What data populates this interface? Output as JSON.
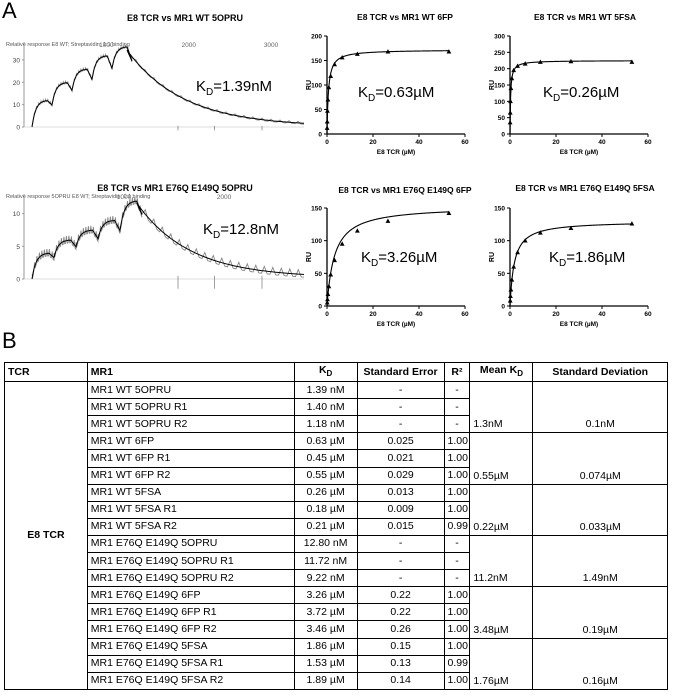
{
  "panel_a_label": "A",
  "panel_b_label": "B",
  "sensor_charts": [
    {
      "title": "E8 TCR vs MR1 WT 5OPRU",
      "overlay_text": "Relative response E8 WT; Streptavidin; 1:1 binding",
      "kd_symbol": "K",
      "kd_sub": "D",
      "kd_value": "=1.39nM",
      "y_ticks": [
        "0",
        "10",
        "20",
        "30"
      ],
      "x_ticks": [
        "1000",
        "2000",
        "3000"
      ]
    },
    {
      "title": "E8 TCR vs MR1 E76Q E149Q 5OPRU",
      "overlay_text": "Relative response 5OPRU E8 WT; Streptavidin; 1:1 binding",
      "kd_symbol": "K",
      "kd_sub": "D",
      "kd_value": "=12.8nM",
      "y_ticks": [
        "0",
        "5",
        "10"
      ],
      "x_ticks": [
        "1000",
        "2000"
      ]
    }
  ],
  "chart_data": [
    {
      "type": "scatter",
      "title": "E8 TCR vs MR1 WT 6FP",
      "xlabel": "E8 TCR (µM)",
      "ylabel": "RU",
      "xlim": [
        0,
        60
      ],
      "ylim": [
        0,
        200
      ],
      "x_ticks": [
        0,
        20,
        40,
        60
      ],
      "y_ticks": [
        0,
        50,
        100,
        150,
        200
      ],
      "x": [
        0.05,
        0.1,
        0.2,
        0.4,
        0.8,
        1.6,
        3.3,
        6.6,
        13.2,
        26.5,
        53
      ],
      "y": [
        12,
        25,
        47,
        70,
        95,
        118,
        142,
        156,
        163,
        168,
        168
      ],
      "kd_symbol": "K",
      "kd_sub": "D",
      "kd_value": "=0.63µM",
      "bmax": 172,
      "kd": 0.63
    },
    {
      "type": "scatter",
      "title": "E8 TCR vs MR1 WT 5FSA",
      "xlabel": "E8 TCR (µM)",
      "ylabel": "RU",
      "xlim": [
        0,
        60
      ],
      "ylim": [
        0,
        300
      ],
      "x_ticks": [
        0,
        20,
        40,
        60
      ],
      "y_ticks": [
        0,
        50,
        100,
        150,
        200,
        250,
        300
      ],
      "x": [
        0.05,
        0.1,
        0.2,
        0.4,
        0.8,
        1.6,
        3.3,
        6.6,
        13.2,
        26.5,
        53
      ],
      "y": [
        35,
        65,
        100,
        140,
        170,
        195,
        208,
        215,
        220,
        222,
        220
      ],
      "kd_symbol": "K",
      "kd_sub": "D",
      "kd_value": "=0.26µM",
      "bmax": 225,
      "kd": 0.26
    },
    {
      "type": "scatter",
      "title": "E8 TCR vs MR1 E76Q E149Q 6FP",
      "xlabel": "E8 TCR (µM)",
      "ylabel": "RU",
      "xlim": [
        0,
        60
      ],
      "ylim": [
        0,
        150
      ],
      "x_ticks": [
        0,
        20,
        40,
        60
      ],
      "y_ticks": [
        0,
        50,
        100,
        150
      ],
      "x": [
        0.1,
        0.2,
        0.4,
        0.8,
        1.6,
        3.3,
        6.6,
        13.2,
        26.5,
        53
      ],
      "y": [
        5,
        10,
        18,
        30,
        48,
        70,
        95,
        115,
        130,
        142
      ],
      "kd_symbol": "K",
      "kd_sub": "D",
      "kd_value": "=3.26µM",
      "bmax": 153,
      "kd": 3.26
    },
    {
      "type": "scatter",
      "title": "E8 TCR vs MR1 E76Q E149Q 5FSA",
      "xlabel": "E8 TCR (µM)",
      "ylabel": "RU",
      "xlim": [
        0,
        60
      ],
      "ylim": [
        0,
        150
      ],
      "x_ticks": [
        0,
        20,
        40,
        60
      ],
      "y_ticks": [
        0,
        50,
        100,
        150
      ],
      "x": [
        0.1,
        0.2,
        0.4,
        0.8,
        1.6,
        3.3,
        6.6,
        13.2,
        26.5,
        53
      ],
      "y": [
        8,
        15,
        25,
        40,
        60,
        82,
        100,
        112,
        119,
        126
      ],
      "kd_symbol": "K",
      "kd_sub": "D",
      "kd_value": "=1.86µM",
      "bmax": 130,
      "kd": 1.86
    }
  ],
  "table": {
    "headers": {
      "tcr": "TCR",
      "mr1": "MR1",
      "kd": "K",
      "kd_sub": "D",
      "se": "Standard Error",
      "r2": "R²",
      "mean": "Mean K",
      "mean_sub": "D",
      "sd": "Standard Deviation"
    },
    "tcr_label": "E8 TCR",
    "groups": [
      {
        "rows": [
          {
            "mr1": "MR1 WT 5OPRU",
            "kd": "1.39 nM",
            "se": "-",
            "r2": "-"
          },
          {
            "mr1": "MR1 WT 5OPRU R1",
            "kd": "1.40 nM",
            "se": "-",
            "r2": "-"
          },
          {
            "mr1": "MR1 WT 5OPRU R2",
            "kd": "1.18 nM",
            "se": "-",
            "r2": "-"
          }
        ],
        "mean": "1.3nM",
        "sd": "0.1nM"
      },
      {
        "rows": [
          {
            "mr1": "MR1 WT 6FP",
            "kd": "0.63 µM",
            "se": "0.025",
            "r2": "1.00"
          },
          {
            "mr1": "MR1 WT 6FP R1",
            "kd": "0.45 µM",
            "se": "0.021",
            "r2": "1.00"
          },
          {
            "mr1": "MR1 WT 6FP R2",
            "kd": "0.55 µM",
            "se": "0.029",
            "r2": "1.00"
          }
        ],
        "mean": "0.55µM",
        "sd": "0.074µM"
      },
      {
        "rows": [
          {
            "mr1": "MR1 WT 5FSA",
            "kd": "0.26 µM",
            "se": "0.013",
            "r2": "1.00"
          },
          {
            "mr1": "MR1 WT 5FSA R1",
            "kd": "0.18 µM",
            "se": "0.009",
            "r2": "1.00"
          },
          {
            "mr1": "MR1 WT 5FSA R2",
            "kd": "0.21 µM",
            "se": "0.015",
            "r2": "0.99"
          }
        ],
        "mean": "0.22µM",
        "sd": "0.033µM"
      },
      {
        "rows": [
          {
            "mr1": "MR1 E76Q E149Q 5OPRU",
            "kd": "12.80 nM",
            "se": "-",
            "r2": "-"
          },
          {
            "mr1": "MR1 E76Q E149Q 5OPRU R1",
            "kd": "11.72 nM",
            "se": "-",
            "r2": "-"
          },
          {
            "mr1": "MR1 E76Q E149Q 5OPRU R2",
            "kd": "9.22 nM",
            "se": "-",
            "r2": "-"
          }
        ],
        "mean": "11.2nM",
        "sd": "1.49nM"
      },
      {
        "rows": [
          {
            "mr1": "MR1 E76Q E149Q 6FP",
            "kd": "3.26 µM",
            "se": "0.22",
            "r2": "1.00"
          },
          {
            "mr1": "MR1 E76Q E149Q 6FP R1",
            "kd": "3.72 µM",
            "se": "0.22",
            "r2": "1.00"
          },
          {
            "mr1": "MR1 E76Q E149Q 6FP R2",
            "kd": "3.46 µM",
            "se": "0.26",
            "r2": "1.00"
          }
        ],
        "mean": "3.48µM",
        "sd": "0.19µM"
      },
      {
        "rows": [
          {
            "mr1": "MR1 E76Q E149Q 5FSA",
            "kd": "1.86 µM",
            "se": "0.15",
            "r2": "1.00"
          },
          {
            "mr1": "MR1 E76Q E149Q 5FSA R1",
            "kd": "1.53 µM",
            "se": "0.13",
            "r2": "0.99"
          },
          {
            "mr1": "MR1 E76Q E149Q 5FSA R2",
            "kd": "1.89 µM",
            "se": "0.14",
            "r2": "1.00"
          }
        ],
        "mean": "1.76µM",
        "sd": "0.16µM"
      }
    ]
  }
}
